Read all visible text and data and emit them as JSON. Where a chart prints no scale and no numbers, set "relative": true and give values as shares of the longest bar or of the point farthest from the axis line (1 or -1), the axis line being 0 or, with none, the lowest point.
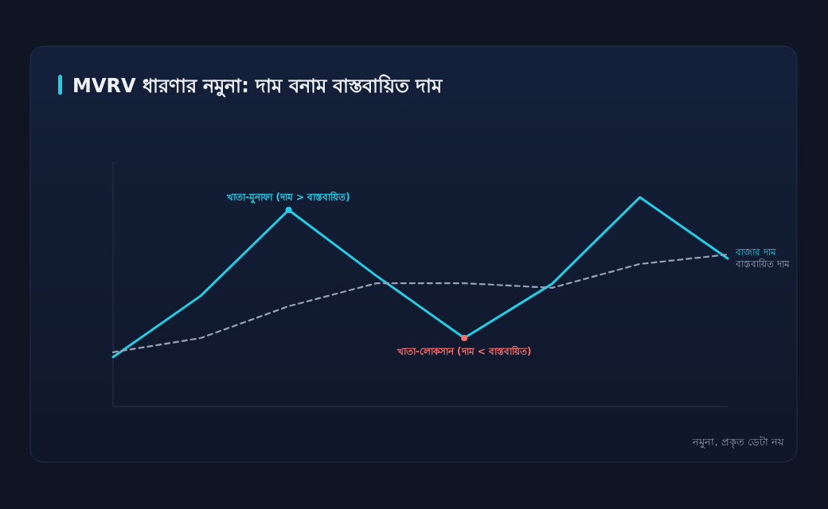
{
  "chart_data": {
    "type": "line",
    "title": "MVRV ধারণার নমুনা: দাম বনাম বাস্তবায়িত দাম",
    "relative": true,
    "categories": [
      null,
      null,
      null,
      null,
      null,
      null,
      null,
      null
    ],
    "series": [
      {
        "name": "বাজার দাম",
        "color": "#22cde6",
        "line_style": "solid",
        "values": [
          0.236,
          0.529,
          0.939,
          0.624,
          0.327,
          0.586,
          1.0,
          0.707
        ]
      },
      {
        "name": "বাস্তবায়িত দাম",
        "color": "#94a3b8",
        "line_style": "dashed",
        "values": [
          0.259,
          0.327,
          0.479,
          0.589,
          0.589,
          0.567,
          0.681,
          0.726
        ]
      }
    ],
    "annotations": [
      {
        "text": "খাতা-মুনাফা (দাম > বাস্তবায়িত)",
        "y": 0.939
      },
      {
        "text": "খাতা-লোকসান (দাম < বাস্তবায়িত)",
        "y": 0.327
      },
      "নমুনা, প্রকৃত ডেটা নয়"
    ],
    "legend": false,
    "marker": "none"
  }
}
